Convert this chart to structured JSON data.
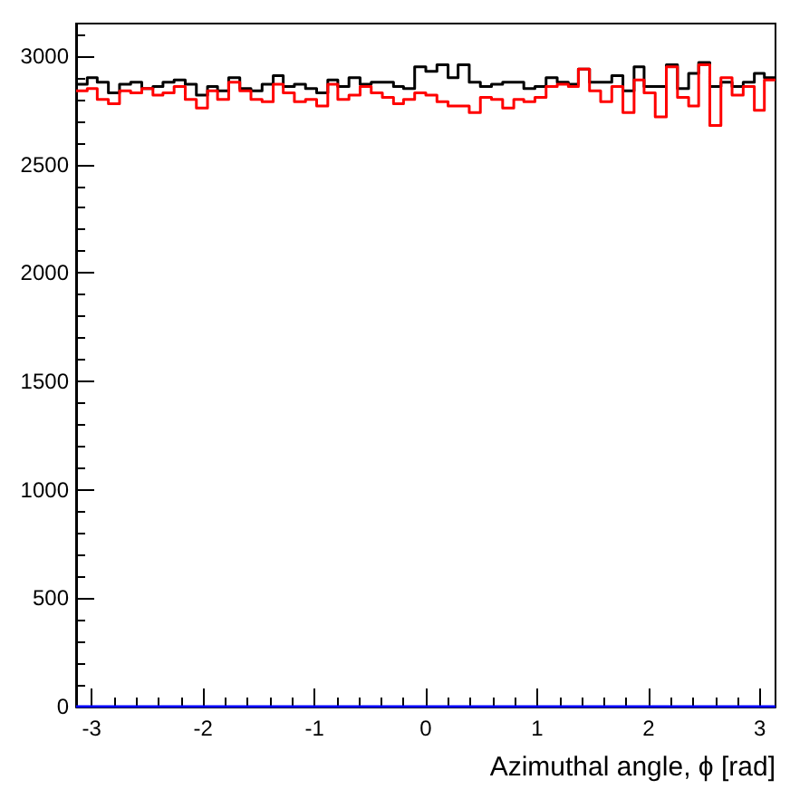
{
  "chart_data": {
    "type": "histogram",
    "xlabel": "Azimuthal angle, ϕ [rad]",
    "bins": [
      -3.14,
      -3.04,
      -2.95,
      -2.85,
      -2.75,
      -2.65,
      -2.55,
      -2.45,
      -2.36,
      -2.26,
      -2.16,
      -2.06,
      -1.96,
      -1.87,
      -1.77,
      -1.67,
      -1.57,
      -1.47,
      -1.37,
      -1.28,
      -1.18,
      -1.08,
      -0.98,
      -0.88,
      -0.79,
      -0.69,
      -0.59,
      -0.49,
      -0.39,
      -0.29,
      -0.2,
      -0.1,
      0,
      0.1,
      0.2,
      0.29,
      0.39,
      0.49,
      0.59,
      0.69,
      0.79,
      0.88,
      0.98,
      1.08,
      1.18,
      1.28,
      1.37,
      1.47,
      1.57,
      1.67,
      1.77,
      1.87,
      1.96,
      2.06,
      2.16,
      2.26,
      2.36,
      2.45,
      2.55,
      2.65,
      2.75,
      2.85,
      2.95,
      3.04,
      3.14
    ],
    "series": [
      {
        "color": "#000000",
        "values": [
          2870,
          2900,
          2880,
          2830,
          2870,
          2880,
          2850,
          2860,
          2880,
          2890,
          2870,
          2820,
          2860,
          2840,
          2900,
          2850,
          2840,
          2870,
          2910,
          2860,
          2870,
          2850,
          2830,
          2890,
          2860,
          2900,
          2870,
          2880,
          2880,
          2860,
          2850,
          2950,
          2930,
          2960,
          2900,
          2960,
          2880,
          2860,
          2870,
          2880,
          2880,
          2850,
          2860,
          2900,
          2880,
          2870,
          2940,
          2880,
          2880,
          2910,
          2840,
          2950,
          2860,
          2860,
          2960,
          2850,
          2920,
          2970,
          2860,
          2880,
          2860,
          2880,
          2920,
          2900
        ]
      },
      {
        "color": "#ff0000",
        "values": [
          2840,
          2850,
          2800,
          2780,
          2840,
          2830,
          2850,
          2820,
          2830,
          2860,
          2800,
          2760,
          2840,
          2800,
          2880,
          2840,
          2800,
          2790,
          2870,
          2830,
          2790,
          2800,
          2770,
          2870,
          2800,
          2820,
          2860,
          2830,
          2810,
          2780,
          2800,
          2830,
          2820,
          2790,
          2770,
          2770,
          2740,
          2810,
          2800,
          2760,
          2800,
          2790,
          2810,
          2860,
          2870,
          2860,
          2940,
          2840,
          2790,
          2860,
          2740,
          2890,
          2830,
          2720,
          2950,
          2810,
          2770,
          2960,
          2680,
          2900,
          2820,
          2860,
          2750,
          2890
        ]
      },
      {
        "color": "#0000ff",
        "values": [
          0,
          0,
          0,
          0,
          0,
          0,
          0,
          0,
          0,
          0,
          0,
          0,
          0,
          0,
          0,
          0,
          0,
          0,
          0,
          0,
          0,
          0,
          0,
          0,
          0,
          0,
          0,
          0,
          0,
          0,
          0,
          0,
          0,
          0,
          0,
          0,
          0,
          0,
          0,
          0,
          0,
          0,
          0,
          0,
          0,
          0,
          0,
          0,
          0,
          0,
          0,
          0,
          0,
          0,
          0,
          0,
          0,
          0,
          0,
          0,
          0,
          0,
          0,
          0
        ]
      }
    ],
    "xlim": [
      -3.14,
      3.14
    ],
    "xticks": [
      -3,
      -2,
      -1,
      0,
      1,
      2,
      3
    ],
    "ylim": [
      0,
      3150
    ],
    "yticks": [
      0,
      500,
      1000,
      1500,
      2000,
      2500,
      3000
    ],
    "grid": false,
    "marker": "none",
    "line_style": "solid"
  }
}
